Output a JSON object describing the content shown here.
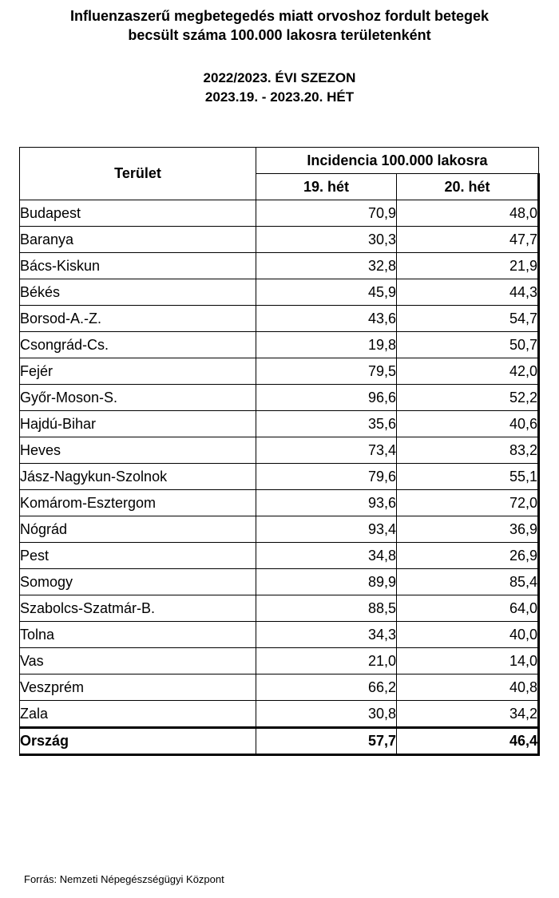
{
  "title": {
    "line1": "Influenzaszerű megbetegedés miatt orvoshoz fordult betegek",
    "line2": "becsült száma 100.000 lakosra területenként"
  },
  "season": {
    "line1": "2022/2023. ÉVI SZEZON",
    "line2": "2023.19. - 2023.20. HÉT"
  },
  "table": {
    "area_header": "Terület",
    "incidence_header": "Incidencia 100.000 lakosra",
    "week_headers": [
      "19. hét",
      "20. hét"
    ],
    "rows": [
      {
        "area": "Budapest",
        "w19": "70,9",
        "w20": "48,0"
      },
      {
        "area": "Baranya",
        "w19": "30,3",
        "w20": "47,7"
      },
      {
        "area": "Bács-Kiskun",
        "w19": "32,8",
        "w20": "21,9"
      },
      {
        "area": "Békés",
        "w19": "45,9",
        "w20": "44,3"
      },
      {
        "area": "Borsod-A.-Z.",
        "w19": "43,6",
        "w20": "54,7"
      },
      {
        "area": "Csongrád-Cs.",
        "w19": "19,8",
        "w20": "50,7"
      },
      {
        "area": "Fejér",
        "w19": "79,5",
        "w20": "42,0"
      },
      {
        "area": "Győr-Moson-S.",
        "w19": "96,6",
        "w20": "52,2"
      },
      {
        "area": "Hajdú-Bihar",
        "w19": "35,6",
        "w20": "40,6"
      },
      {
        "area": "Heves",
        "w19": "73,4",
        "w20": "83,2"
      },
      {
        "area": "Jász-Nagykun-Szolnok",
        "w19": "79,6",
        "w20": "55,1"
      },
      {
        "area": "Komárom-Esztergom",
        "w19": "93,6",
        "w20": "72,0"
      },
      {
        "area": "Nógrád",
        "w19": "93,4",
        "w20": "36,9"
      },
      {
        "area": "Pest",
        "w19": "34,8",
        "w20": "26,9"
      },
      {
        "area": "Somogy",
        "w19": "89,9",
        "w20": "85,4"
      },
      {
        "area": "Szabolcs-Szatmár-B.",
        "w19": "88,5",
        "w20": "64,0"
      },
      {
        "area": "Tolna",
        "w19": "34,3",
        "w20": "40,0"
      },
      {
        "area": "Vas",
        "w19": "21,0",
        "w20": "14,0"
      },
      {
        "area": "Veszprém",
        "w19": "66,2",
        "w20": "40,8"
      },
      {
        "area": "Zala",
        "w19": "30,8",
        "w20": "34,2"
      }
    ],
    "total": {
      "area": "Ország",
      "w19": "57,7",
      "w20": "46,4"
    }
  },
  "source": "Forrás: Nemzeti Népegészségügyi Központ"
}
